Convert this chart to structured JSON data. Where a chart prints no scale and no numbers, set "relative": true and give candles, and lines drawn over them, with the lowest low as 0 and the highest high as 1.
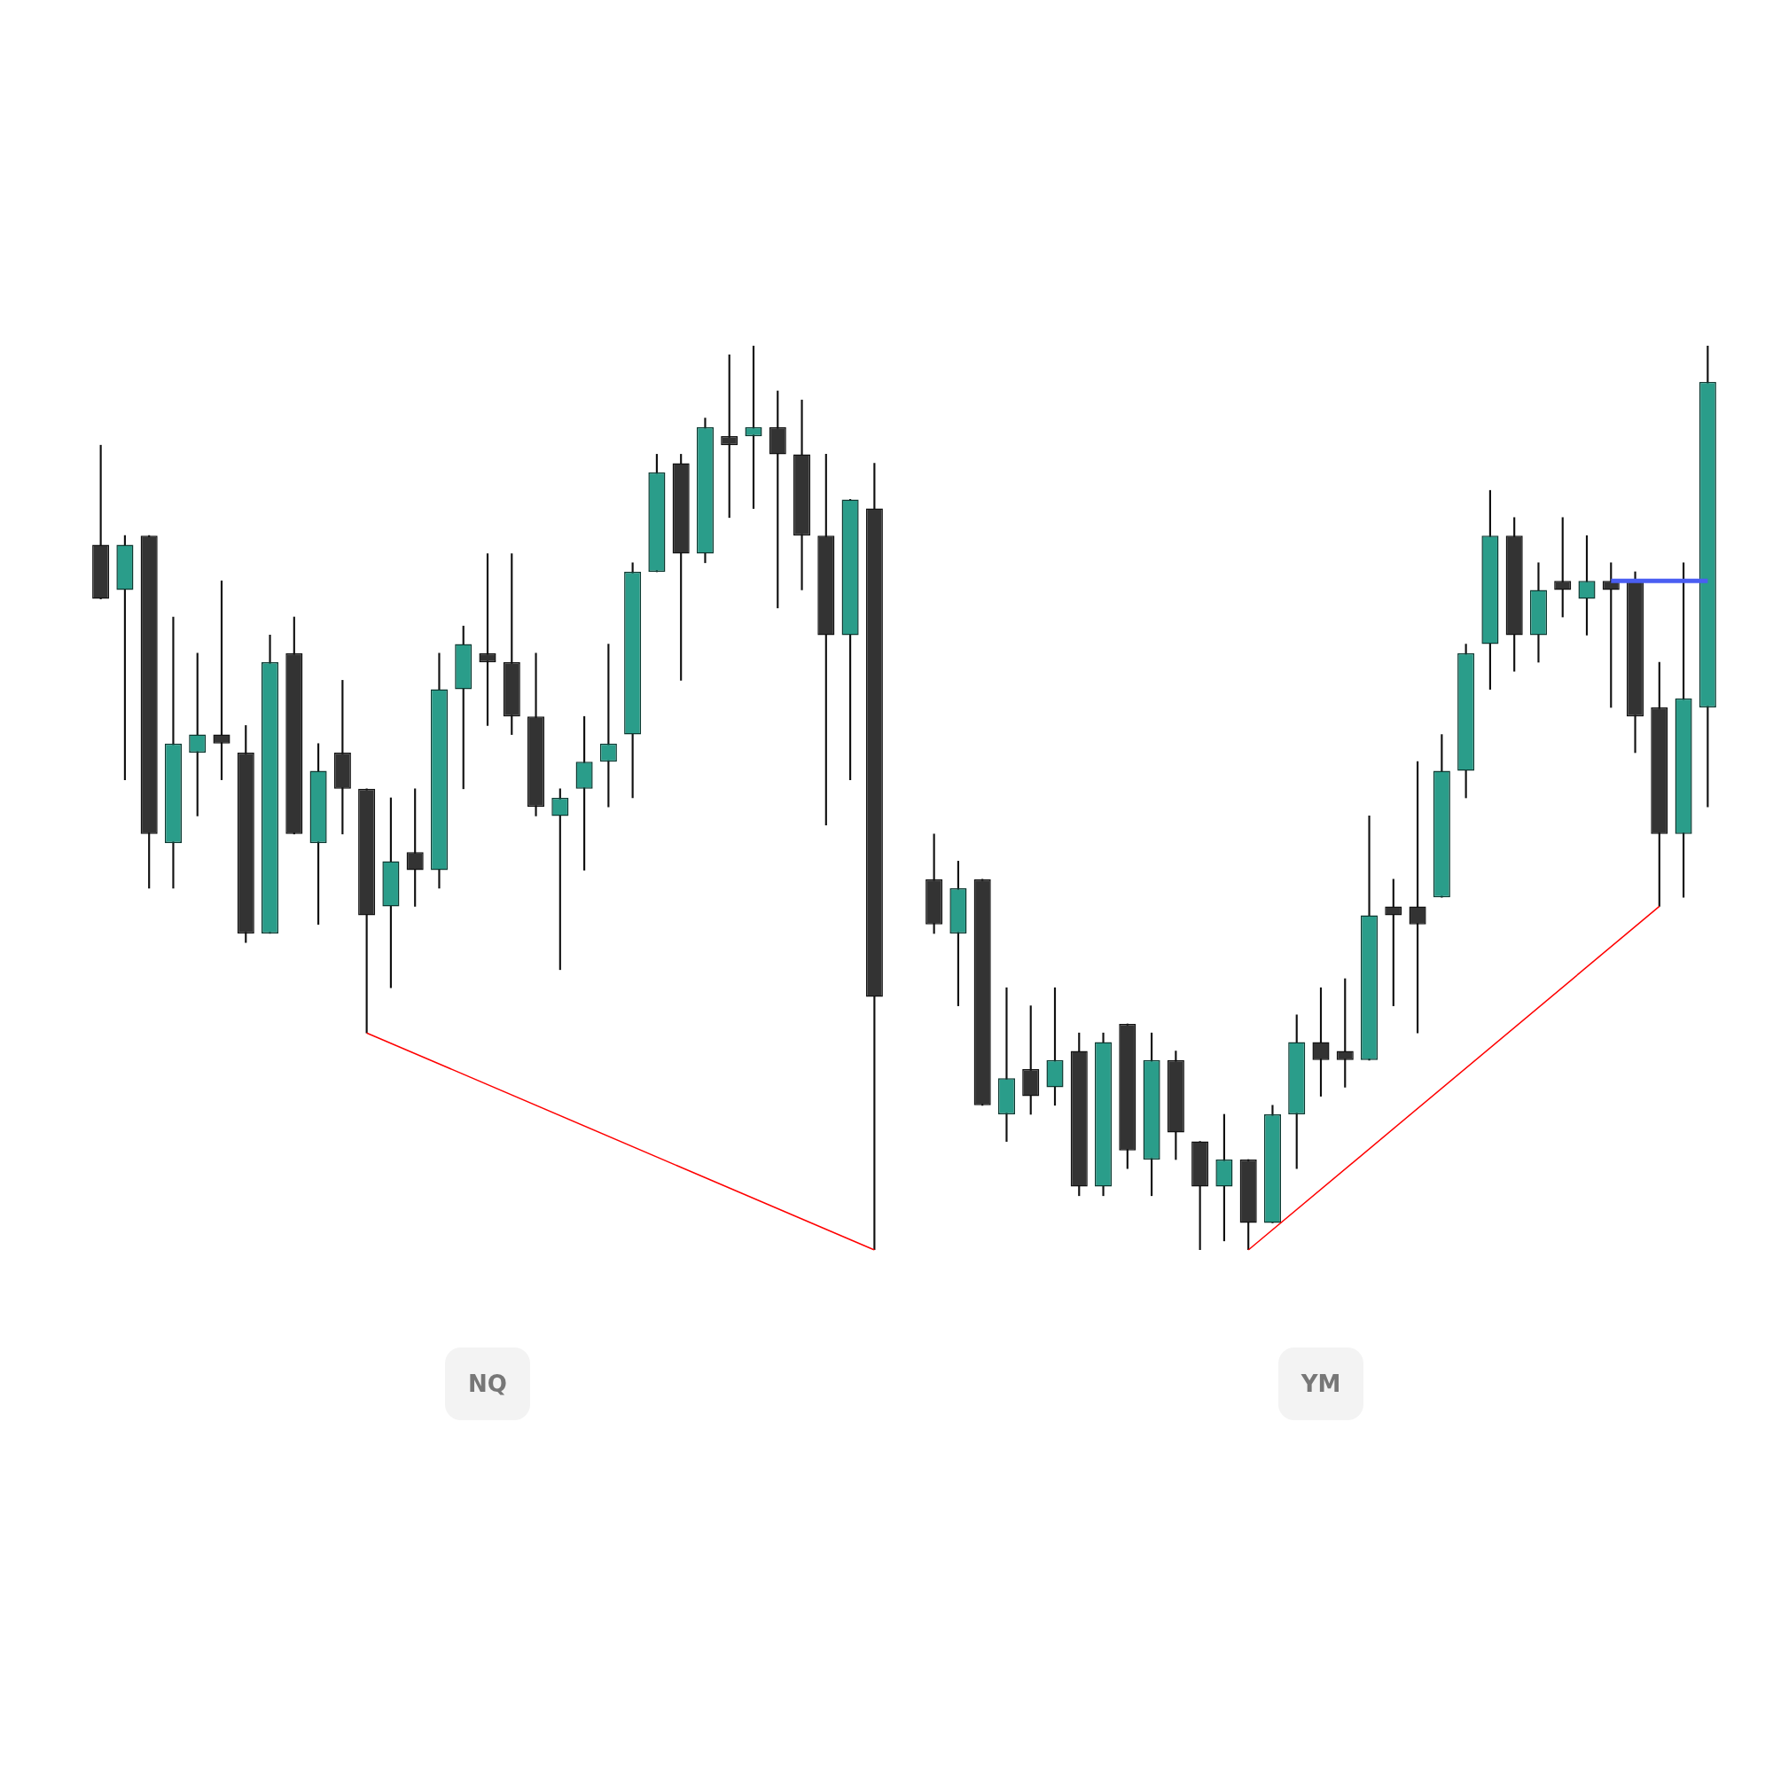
{
  "chart_data": [
    {
      "type": "candlestick",
      "title": "NQ",
      "relative": true,
      "tick_labels": false,
      "categories": [
        null,
        null,
        null,
        null,
        null,
        null,
        null,
        null,
        null,
        null,
        null,
        null,
        null,
        null,
        null,
        null,
        null,
        null,
        null,
        null,
        null,
        null,
        null,
        null,
        null,
        null,
        null,
        null,
        null,
        null,
        null,
        null,
        null
      ],
      "ohlc": [
        [
          0.78,
          0.89,
          0.72,
          0.72
        ],
        [
          0.73,
          0.79,
          0.52,
          0.78
        ],
        [
          0.79,
          0.79,
          0.4,
          0.46
        ],
        [
          0.45,
          0.7,
          0.4,
          0.56
        ],
        [
          0.55,
          0.66,
          0.48,
          0.57
        ],
        [
          0.57,
          0.74,
          0.52,
          0.56
        ],
        [
          0.55,
          0.58,
          0.34,
          0.35
        ],
        [
          0.35,
          0.68,
          0.35,
          0.65
        ],
        [
          0.66,
          0.7,
          0.46,
          0.46
        ],
        [
          0.45,
          0.56,
          0.36,
          0.53
        ],
        [
          0.55,
          0.63,
          0.46,
          0.51
        ],
        [
          0.51,
          0.51,
          0.24,
          0.37
        ],
        [
          0.38,
          0.5,
          0.29,
          0.43
        ],
        [
          0.44,
          0.51,
          0.38,
          0.42
        ],
        [
          0.42,
          0.66,
          0.4,
          0.62
        ],
        [
          0.62,
          0.69,
          0.51,
          0.67
        ],
        [
          0.66,
          0.77,
          0.58,
          0.65
        ],
        [
          0.65,
          0.77,
          0.57,
          0.59
        ],
        [
          0.59,
          0.66,
          0.48,
          0.49
        ],
        [
          0.48,
          0.51,
          0.31,
          0.5
        ],
        [
          0.51,
          0.59,
          0.42,
          0.54
        ],
        [
          0.54,
          0.67,
          0.49,
          0.56
        ],
        [
          0.57,
          0.76,
          0.5,
          0.75
        ],
        [
          0.75,
          0.88,
          0.75,
          0.86
        ],
        [
          0.87,
          0.88,
          0.63,
          0.77
        ],
        [
          0.77,
          0.92,
          0.76,
          0.91
        ],
        [
          0.9,
          0.99,
          0.81,
          0.89
        ],
        [
          0.9,
          1.0,
          0.82,
          0.91
        ],
        [
          0.91,
          0.95,
          0.71,
          0.88
        ],
        [
          0.88,
          0.94,
          0.73,
          0.79
        ],
        [
          0.79,
          0.88,
          0.47,
          0.68
        ],
        [
          0.68,
          0.83,
          0.52,
          0.83
        ],
        [
          0.82,
          0.87,
          0.0,
          0.28
        ]
      ],
      "series": [
        {
          "type": "line",
          "color": "#ff0000",
          "values": [
            null,
            null,
            null,
            null,
            null,
            null,
            null,
            null,
            null,
            null,
            null,
            0.24,
            null,
            null,
            null,
            null,
            null,
            null,
            null,
            null,
            null,
            null,
            null,
            null,
            null,
            null,
            null,
            null,
            null,
            null,
            null,
            null,
            0.0
          ]
        }
      ]
    },
    {
      "type": "candlestick",
      "title": "YM",
      "relative": true,
      "tick_labels": false,
      "categories": [
        null,
        null,
        null,
        null,
        null,
        null,
        null,
        null,
        null,
        null,
        null,
        null,
        null,
        null,
        null,
        null,
        null,
        null,
        null,
        null,
        null,
        null,
        null,
        null,
        null,
        null,
        null,
        null,
        null,
        null,
        null,
        null,
        null
      ],
      "ohlc": [
        [
          0.41,
          0.46,
          0.35,
          0.36
        ],
        [
          0.35,
          0.43,
          0.27,
          0.4
        ],
        [
          0.41,
          0.41,
          0.16,
          0.16
        ],
        [
          0.15,
          0.29,
          0.12,
          0.19
        ],
        [
          0.2,
          0.27,
          0.15,
          0.17
        ],
        [
          0.18,
          0.29,
          0.16,
          0.21
        ],
        [
          0.22,
          0.24,
          0.06,
          0.07
        ],
        [
          0.07,
          0.24,
          0.06,
          0.23
        ],
        [
          0.25,
          0.25,
          0.09,
          0.11
        ],
        [
          0.1,
          0.24,
          0.06,
          0.21
        ],
        [
          0.21,
          0.22,
          0.1,
          0.13
        ],
        [
          0.12,
          0.12,
          0.0,
          0.07
        ],
        [
          0.07,
          0.15,
          0.01,
          0.1
        ],
        [
          0.1,
          0.1,
          0.0,
          0.03
        ],
        [
          0.03,
          0.16,
          0.03,
          0.15
        ],
        [
          0.15,
          0.26,
          0.09,
          0.23
        ],
        [
          0.23,
          0.29,
          0.17,
          0.21
        ],
        [
          0.22,
          0.3,
          0.18,
          0.21
        ],
        [
          0.21,
          0.48,
          0.21,
          0.37
        ],
        [
          0.38,
          0.41,
          0.27,
          0.37
        ],
        [
          0.38,
          0.54,
          0.24,
          0.36
        ],
        [
          0.39,
          0.57,
          0.39,
          0.53
        ],
        [
          0.53,
          0.67,
          0.5,
          0.66
        ],
        [
          0.67,
          0.84,
          0.62,
          0.79
        ],
        [
          0.79,
          0.81,
          0.64,
          0.68
        ],
        [
          0.68,
          0.76,
          0.65,
          0.73
        ],
        [
          0.74,
          0.81,
          0.7,
          0.73
        ],
        [
          0.72,
          0.79,
          0.68,
          0.74
        ],
        [
          0.74,
          0.76,
          0.6,
          0.73
        ],
        [
          0.74,
          0.75,
          0.55,
          0.59
        ],
        [
          0.6,
          0.65,
          0.38,
          0.46
        ],
        [
          0.46,
          0.76,
          0.39,
          0.61
        ],
        [
          0.6,
          1.0,
          0.49,
          0.96
        ]
      ],
      "series": [
        {
          "type": "line",
          "color": "#ff0000",
          "values": [
            null,
            null,
            null,
            null,
            null,
            null,
            null,
            null,
            null,
            null,
            null,
            null,
            null,
            0.0,
            null,
            null,
            null,
            null,
            null,
            null,
            null,
            null,
            null,
            null,
            null,
            null,
            null,
            null,
            null,
            null,
            0.38,
            null,
            null
          ]
        },
        {
          "type": "line",
          "color": "#4a5ef2",
          "values": [
            null,
            null,
            null,
            null,
            null,
            null,
            null,
            null,
            null,
            null,
            null,
            null,
            null,
            null,
            null,
            null,
            null,
            null,
            null,
            null,
            null,
            null,
            null,
            null,
            null,
            null,
            null,
            null,
            0.74,
            0.74,
            0.74,
            0.74,
            0.74
          ]
        }
      ]
    }
  ]
}
